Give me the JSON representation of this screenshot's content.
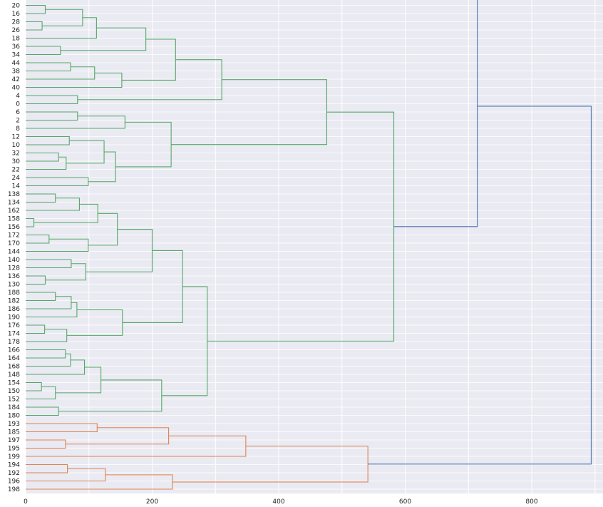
{
  "chart_data": {
    "type": "dendrogram",
    "orientation": "horizontal",
    "xlim": [
      0,
      910
    ],
    "xticks": [
      0,
      200,
      400,
      600,
      800
    ],
    "grid": true,
    "colors": {
      "background": "#eaeaf2",
      "grid": "#ffffff",
      "cluster_green": "#55a868",
      "cluster_orange": "#dd8452",
      "link_blue": "#4c72b0"
    },
    "leaves": [
      "20",
      "16",
      "28",
      "26",
      "18",
      "36",
      "34",
      "44",
      "38",
      "42",
      "40",
      "4",
      "0",
      "6",
      "2",
      "8",
      "12",
      "10",
      "32",
      "30",
      "22",
      "24",
      "14",
      "138",
      "134",
      "162",
      "158",
      "156",
      "172",
      "170",
      "144",
      "140",
      "128",
      "136",
      "130",
      "188",
      "182",
      "186",
      "190",
      "176",
      "174",
      "178",
      "166",
      "164",
      "168",
      "148",
      "154",
      "150",
      "152",
      "184",
      "180",
      "193",
      "185",
      "197",
      "195",
      "199",
      "194",
      "192",
      "196",
      "198"
    ],
    "links": [
      {
        "a": "20",
        "b": "16",
        "h": 31,
        "c": "g",
        "id": "A"
      },
      {
        "a": "28",
        "b": "26",
        "h": 26,
        "c": "g",
        "id": "B"
      },
      {
        "a": "A",
        "b": "B",
        "h": 90,
        "c": "g",
        "id": "C"
      },
      {
        "a": "C",
        "b": "18",
        "h": 112,
        "c": "g",
        "id": "D"
      },
      {
        "a": "36",
        "b": "34",
        "h": 55,
        "c": "g",
        "id": "E"
      },
      {
        "a": "D",
        "b": "E",
        "h": 190,
        "c": "g",
        "id": "F"
      },
      {
        "a": "44",
        "b": "38",
        "h": 71,
        "c": "g",
        "id": "G"
      },
      {
        "a": "G",
        "b": "42",
        "h": 109,
        "c": "g",
        "id": "H"
      },
      {
        "a": "H",
        "b": "40",
        "h": 152,
        "c": "g",
        "id": "I"
      },
      {
        "a": "F",
        "b": "I",
        "h": 237,
        "c": "g",
        "id": "J"
      },
      {
        "a": "4",
        "b": "0",
        "h": 82,
        "c": "g",
        "id": "K"
      },
      {
        "a": "J",
        "b": "K",
        "h": 310,
        "c": "g",
        "id": "L"
      },
      {
        "a": "6",
        "b": "2",
        "h": 82,
        "c": "g",
        "id": "M"
      },
      {
        "a": "M",
        "b": "8",
        "h": 157,
        "c": "g",
        "id": "N"
      },
      {
        "a": "12",
        "b": "10",
        "h": 69,
        "c": "g",
        "id": "O"
      },
      {
        "a": "32",
        "b": "30",
        "h": 52,
        "c": "g",
        "id": "P"
      },
      {
        "a": "P",
        "b": "22",
        "h": 64,
        "c": "g",
        "id": "Q"
      },
      {
        "a": "O",
        "b": "Q",
        "h": 124,
        "c": "g",
        "id": "R"
      },
      {
        "a": "24",
        "b": "14",
        "h": 99,
        "c": "g",
        "id": "S"
      },
      {
        "a": "R",
        "b": "S",
        "h": 142,
        "c": "g",
        "id": "T"
      },
      {
        "a": "N",
        "b": "T",
        "h": 230,
        "c": "g",
        "id": "U"
      },
      {
        "a": "L",
        "b": "U",
        "h": 476,
        "c": "g",
        "id": "V"
      },
      {
        "a": "138",
        "b": "134",
        "h": 47,
        "c": "g",
        "id": "W"
      },
      {
        "a": "W",
        "b": "162",
        "h": 85,
        "c": "g",
        "id": "X"
      },
      {
        "a": "158",
        "b": "156",
        "h": 13,
        "c": "g",
        "id": "Y"
      },
      {
        "a": "X",
        "b": "Y",
        "h": 114,
        "c": "g",
        "id": "Z"
      },
      {
        "a": "172",
        "b": "170",
        "h": 37,
        "c": "g",
        "id": "AA"
      },
      {
        "a": "AA",
        "b": "144",
        "h": 99,
        "c": "g",
        "id": "AB"
      },
      {
        "a": "Z",
        "b": "AB",
        "h": 145,
        "c": "g",
        "id": "AC"
      },
      {
        "a": "140",
        "b": "128",
        "h": 72,
        "c": "g",
        "id": "AD"
      },
      {
        "a": "136",
        "b": "130",
        "h": 31,
        "c": "g",
        "id": "AE"
      },
      {
        "a": "AD",
        "b": "AE",
        "h": 95,
        "c": "g",
        "id": "AF"
      },
      {
        "a": "AC",
        "b": "AF",
        "h": 200,
        "c": "g",
        "id": "AG"
      },
      {
        "a": "188",
        "b": "182",
        "h": 47,
        "c": "g",
        "id": "AH"
      },
      {
        "a": "AH",
        "b": "186",
        "h": 72,
        "c": "g",
        "id": "AI"
      },
      {
        "a": "AI",
        "b": "190",
        "h": 81,
        "c": "g",
        "id": "AJ"
      },
      {
        "a": "176",
        "b": "174",
        "h": 30,
        "c": "g",
        "id": "AK"
      },
      {
        "a": "AK",
        "b": "178",
        "h": 65,
        "c": "g",
        "id": "AL"
      },
      {
        "a": "AJ",
        "b": "AL",
        "h": 153,
        "c": "g",
        "id": "AM"
      },
      {
        "a": "AG",
        "b": "AM",
        "h": 248,
        "c": "g",
        "id": "AN"
      },
      {
        "a": "166",
        "b": "164",
        "h": 63,
        "c": "g",
        "id": "AO"
      },
      {
        "a": "AO",
        "b": "168",
        "h": 71,
        "c": "g",
        "id": "AP"
      },
      {
        "a": "AP",
        "b": "148",
        "h": 93,
        "c": "g",
        "id": "AQ"
      },
      {
        "a": "154",
        "b": "150",
        "h": 25,
        "c": "g",
        "id": "AR"
      },
      {
        "a": "AR",
        "b": "152",
        "h": 47,
        "c": "g",
        "id": "AS"
      },
      {
        "a": "AQ",
        "b": "AS",
        "h": 119,
        "c": "g",
        "id": "AT"
      },
      {
        "a": "184",
        "b": "180",
        "h": 52,
        "c": "g",
        "id": "AU"
      },
      {
        "a": "AT",
        "b": "AU",
        "h": 215,
        "c": "g",
        "id": "AV"
      },
      {
        "a": "AN",
        "b": "AV",
        "h": 287,
        "c": "g",
        "id": "AW"
      },
      {
        "a": "V",
        "b": "AW",
        "h": 582,
        "c": "g",
        "id": "AX"
      },
      {
        "a": "193",
        "b": "185",
        "h": 113,
        "c": "o",
        "id": "AY"
      },
      {
        "a": "197",
        "b": "195",
        "h": 63,
        "c": "o",
        "id": "AZ"
      },
      {
        "a": "AY",
        "b": "AZ",
        "h": 226,
        "c": "o",
        "id": "BA"
      },
      {
        "a": "BA",
        "b": "199",
        "h": 348,
        "c": "o",
        "id": "BB"
      },
      {
        "a": "194",
        "b": "192",
        "h": 66,
        "c": "o",
        "id": "BC"
      },
      {
        "a": "BC",
        "b": "196",
        "h": 126,
        "c": "o",
        "id": "BD"
      },
      {
        "a": "BD",
        "b": "198",
        "h": 232,
        "c": "o",
        "id": "BE"
      },
      {
        "a": "BB",
        "b": "BE",
        "h": 541,
        "c": "o",
        "id": "BF"
      },
      {
        "a": "AX",
        "b": "TOPGREEN",
        "h": 714,
        "c": "b",
        "id": "BG"
      },
      {
        "a": "BG",
        "b": "BF",
        "h": 894,
        "c": "b",
        "id": "BH"
      }
    ]
  }
}
